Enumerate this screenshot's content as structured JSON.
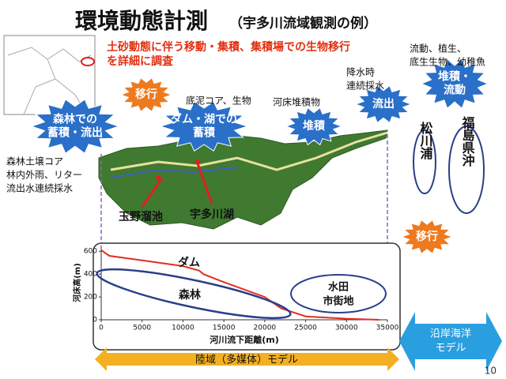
{
  "header": {
    "title": "環境動態計測",
    "subtitle": "（宇多川流域観測の例）"
  },
  "intro": [
    "土砂動態に伴う移動・集積、集積場での生物移行",
    "を詳細に調査"
  ],
  "bursts": [
    {
      "lines": [
        "移行"
      ],
      "kind": "orange"
    },
    {
      "lines": [
        "森林での",
        "蓄積・流出"
      ],
      "kind": "blue"
    },
    {
      "lines": [
        "ダム・湖での",
        "蓄積"
      ],
      "kind": "blue"
    },
    {
      "lines": [
        "堆積"
      ],
      "kind": "blue"
    },
    {
      "lines": [
        "流出"
      ],
      "kind": "blue"
    },
    {
      "lines": [
        "堆積・",
        "流動"
      ],
      "kind": "blue"
    },
    {
      "lines": [
        "移行"
      ],
      "kind": "orange"
    }
  ],
  "notes": [
    {
      "lines": [
        "底泥コア、生物"
      ]
    },
    {
      "lines": [
        "河床堆積物"
      ]
    },
    {
      "lines": [
        "降水時",
        "連続採水"
      ]
    },
    {
      "lines": [
        "流動、植生、",
        "底生生物、幼稚魚"
      ]
    },
    {
      "lines": [
        "森林土壌コア",
        "林内外雨、リター",
        "流出水連続採水"
      ]
    }
  ],
  "sites": [
    "玉野溜池",
    "宇多川湖"
  ],
  "ovals": [
    "松川浦",
    "福島県沖"
  ],
  "chart_data": {
    "type": "line",
    "x_label": "河川流下距離(m)",
    "y_label": "河床高(m)",
    "x": [
      0,
      1000,
      5000,
      10000,
      12000,
      12500,
      15000,
      20000,
      22000,
      25000,
      30000,
      34000
    ],
    "series": [
      {
        "name": "河床高",
        "color": "#e03020",
        "values": [
          610,
          560,
          520,
          470,
          430,
          400,
          330,
          200,
          100,
          30,
          10,
          0
        ]
      }
    ],
    "xlim": [
      0,
      35000
    ],
    "xticks": [
      0,
      5000,
      10000,
      15000,
      20000,
      25000,
      30000,
      35000
    ],
    "ylim": [
      0,
      650
    ],
    "yticks": [
      0,
      200,
      400,
      600
    ],
    "annotations": {
      "dam": "ダム",
      "forest": "森林",
      "paddy": [
        "水田",
        "市街地"
      ]
    }
  },
  "footer": {
    "land_model": "陸域（多媒体）モデル",
    "ocean_model": [
      "沿岸海洋",
      "モデル"
    ],
    "page": "10"
  }
}
